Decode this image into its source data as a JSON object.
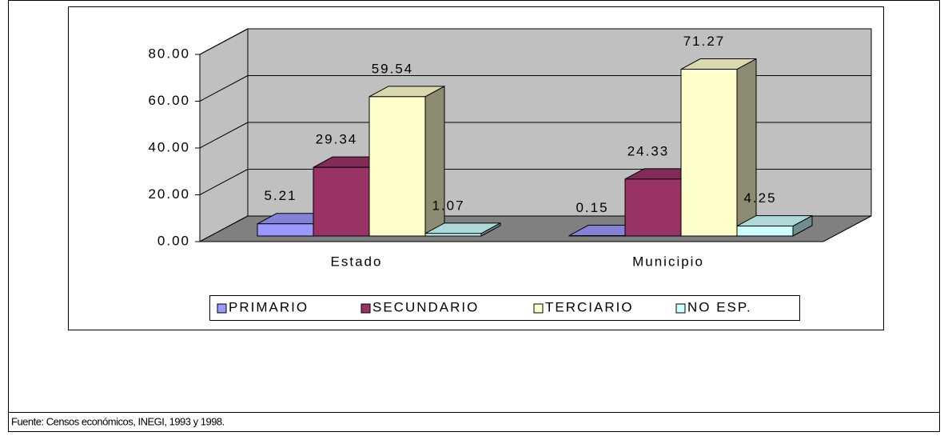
{
  "chart_data": {
    "type": "bar3d",
    "categories": [
      "Estado",
      "Municipio"
    ],
    "series": [
      {
        "name": "PRIMARIO",
        "color": "#9999ff",
        "values": [
          5.21,
          0.15
        ]
      },
      {
        "name": "SECUNDARIO",
        "color": "#993366",
        "values": [
          29.34,
          24.33
        ]
      },
      {
        "name": "TERCIARIO",
        "color": "#ffffcc",
        "values": [
          59.54,
          71.27
        ]
      },
      {
        "name": "NO ESP.",
        "color": "#ccffff",
        "values": [
          1.07,
          4.25
        ]
      }
    ],
    "ylim": [
      0,
      80
    ],
    "yticks": [
      {
        "value": 0,
        "label": "0.00"
      },
      {
        "value": 20,
        "label": "20.00"
      },
      {
        "value": 40,
        "label": "40.00"
      },
      {
        "value": 60,
        "label": "60.00"
      },
      {
        "value": 80,
        "label": "80.00"
      }
    ],
    "grid": true,
    "legend": "bottom",
    "source": "Fuente: Censos económicos, INEGI, 1993 y 1998."
  }
}
